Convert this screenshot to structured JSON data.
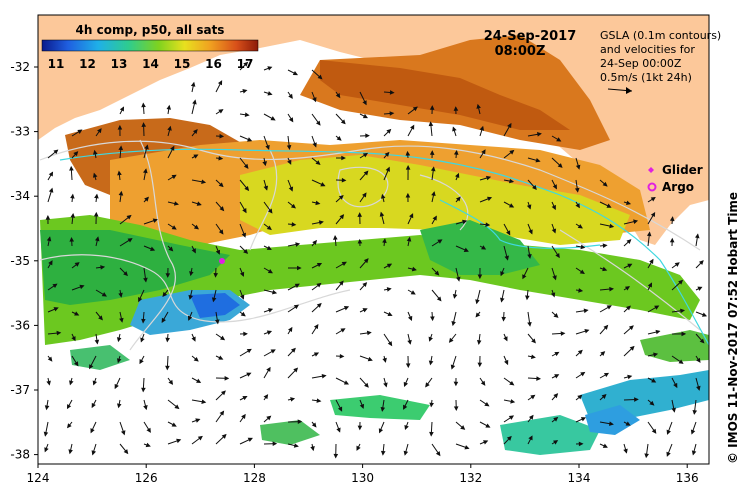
{
  "map": {
    "colorbar": {
      "title": "4h comp, p50, all sats",
      "ticks": [
        "11",
        "12",
        "13",
        "14",
        "15",
        "16",
        "17"
      ],
      "colors": [
        "#0a1a8c",
        "#1f5fe0",
        "#1fb0e8",
        "#2ecc8f",
        "#7fd21f",
        "#e8e01f",
        "#f0a020",
        "#d8501a",
        "#8c1a08"
      ]
    },
    "date": "24-Sep-2017",
    "time": "08:00Z",
    "legend_text": {
      "line1": "GSLA (0.1m contours)",
      "line2": "and velocities for",
      "line3": "24-Sep 00:00Z",
      "line4": "0.5m/s (1kt 24h)"
    },
    "markers": {
      "glider_label": "Glider",
      "argo_label": "Argo",
      "glider_color": "#e020e0",
      "argo_color": "#e020e0"
    },
    "x_ticks": [
      "124",
      "126",
      "128",
      "130",
      "132",
      "134",
      "136"
    ],
    "y_ticks": [
      "-32",
      "-33",
      "-34",
      "-35",
      "-36",
      "-37",
      "-38"
    ],
    "credit": "© IMOS 11-Nov-2017 07:52 Hobart Time",
    "land_color": "#fcc89a"
  }
}
